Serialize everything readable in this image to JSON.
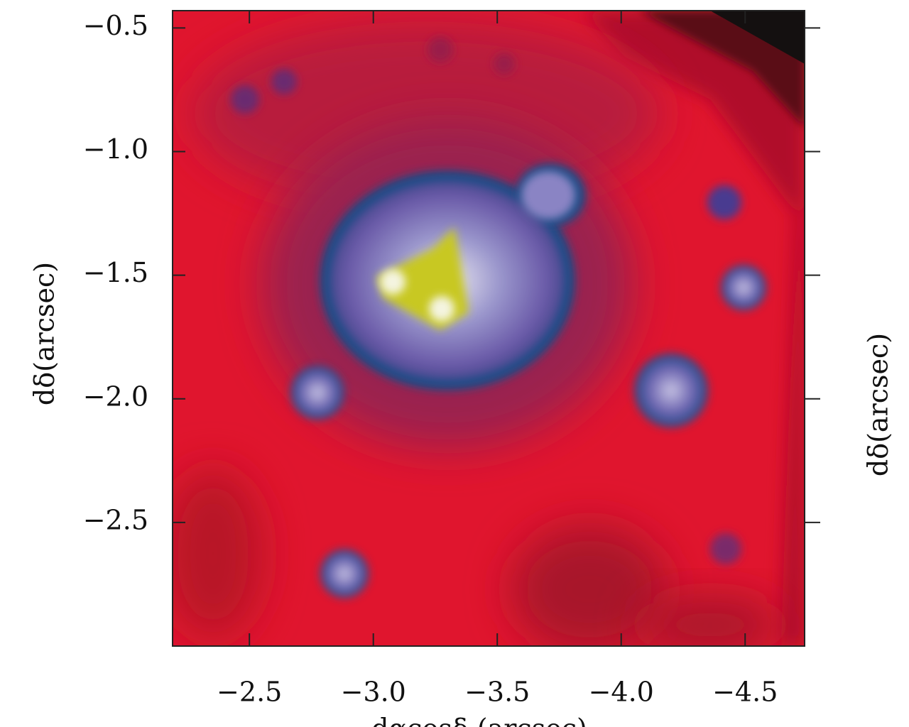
{
  "chart_data": {
    "type": "image",
    "xlabel": "dαcosδ (arcsec)",
    "ylabel": "dδ(arcsec)",
    "xlim": [
      -2.19,
      -4.74
    ],
    "ylim": [
      -3.0,
      -0.43
    ],
    "xticks": [
      {
        "value": -2.5,
        "label": "−2.5"
      },
      {
        "value": -3.0,
        "label": "−3.0"
      },
      {
        "value": -3.5,
        "label": "−3.5"
      },
      {
        "value": -4.0,
        "label": "−4.0"
      },
      {
        "value": -4.5,
        "label": "−4.5"
      }
    ],
    "yticks": [
      {
        "value": -0.5,
        "label": "−0.5"
      },
      {
        "value": -1.0,
        "label": "−1.0"
      },
      {
        "value": -1.5,
        "label": "−1.5"
      },
      {
        "value": -2.0,
        "label": "−2.0"
      },
      {
        "value": -2.5,
        "label": "−2.5"
      }
    ]
  }
}
